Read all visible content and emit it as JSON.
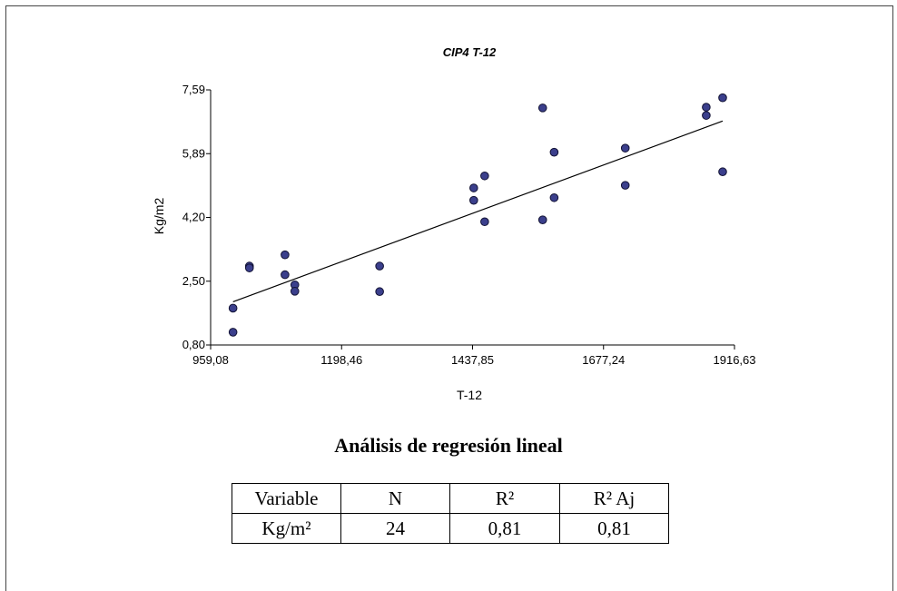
{
  "chart_data": {
    "type": "scatter",
    "title": "CIP4 T-12",
    "xlabel": "T-12",
    "ylabel": "Kg/m2",
    "xlim": [
      959.08,
      1916.63
    ],
    "ylim": [
      0.8,
      7.59
    ],
    "x_ticks": [
      "959,08",
      "1198,46",
      "1437,85",
      "1677,24",
      "1916,63"
    ],
    "y_ticks": [
      "0,80",
      "2,50",
      "4,20",
      "5,89",
      "7,59"
    ],
    "marker_color": "#3b3f8c",
    "series": [
      {
        "points": [
          {
            "x": 1000,
            "y": 1.78
          },
          {
            "x": 1000,
            "y": 1.14
          },
          {
            "x": 1030,
            "y": 2.9
          },
          {
            "x": 1030,
            "y": 2.85
          },
          {
            "x": 1095,
            "y": 3.2
          },
          {
            "x": 1095,
            "y": 2.67
          },
          {
            "x": 1113,
            "y": 2.4
          },
          {
            "x": 1113,
            "y": 2.23
          },
          {
            "x": 1268,
            "y": 2.9
          },
          {
            "x": 1268,
            "y": 2.22
          },
          {
            "x": 1440,
            "y": 4.98
          },
          {
            "x": 1440,
            "y": 4.65
          },
          {
            "x": 1460,
            "y": 5.3
          },
          {
            "x": 1460,
            "y": 4.08
          },
          {
            "x": 1566,
            "y": 7.11
          },
          {
            "x": 1566,
            "y": 4.13
          },
          {
            "x": 1587,
            "y": 5.93
          },
          {
            "x": 1587,
            "y": 4.72
          },
          {
            "x": 1717,
            "y": 6.04
          },
          {
            "x": 1717,
            "y": 5.05
          },
          {
            "x": 1865,
            "y": 7.13
          },
          {
            "x": 1865,
            "y": 6.91
          },
          {
            "x": 1895,
            "y": 7.38
          },
          {
            "x": 1895,
            "y": 5.41
          }
        ]
      }
    ],
    "regression_line": {
      "x": [
        1000,
        1895
      ],
      "y": [
        1.95,
        6.76
      ]
    }
  },
  "analysis": {
    "heading": "Análisis de regresión lineal",
    "table": {
      "headers": [
        "Variable",
        "N",
        "R²",
        "R² Aj"
      ],
      "rows": [
        [
          "Kg/m²",
          "24",
          "0,81",
          "0,81"
        ]
      ]
    }
  }
}
